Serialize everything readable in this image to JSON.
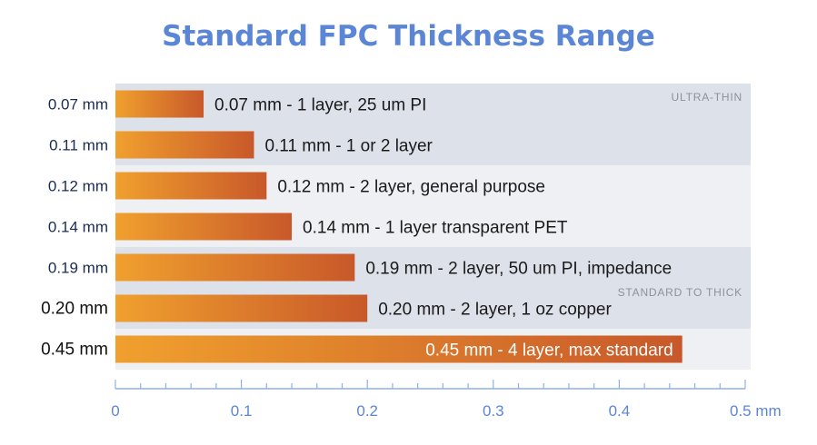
{
  "chart_data": {
    "type": "bar",
    "orientation": "horizontal",
    "title": "Standard FPC Thickness Range",
    "categories": [
      "0.07 mm",
      "0.11 mm",
      "0.12 mm",
      "0.14 mm",
      "0.19 mm",
      "0.20 mm",
      "0.45 mm"
    ],
    "values": [
      0.07,
      0.11,
      0.12,
      0.14,
      0.19,
      0.2,
      0.45
    ],
    "data_labels": [
      "0.07 mm - 1 layer, 25 um PI",
      "0.11 mm - 1 or 2 layer",
      "0.12 mm - 2 layer, general purpose",
      "0.14 mm - 1 layer transparent PET",
      "0.19 mm - 2 layer, 50 um PI, impedance",
      "0.20 mm - 2 layer, 1 oz copper",
      "0.45 mm - 4 layer, max standard"
    ],
    "x_ticks": [
      "0",
      "0.1",
      "0.2",
      "0.3",
      "0.4",
      "0.5 mm"
    ],
    "xlim": [
      0,
      0.5
    ],
    "annotations": [
      "ULTRA-THIN",
      "STANDARD TO THICK"
    ],
    "colors": {
      "bar_start": "#f0a02e",
      "bar_end": "#c8582a",
      "band_dark": "#dde1ea",
      "band_light": "#eef0f4",
      "title": "#5b86d6",
      "axis": "#8fb0e4",
      "category_text": "#1a2c50",
      "annotation_text": "#8c919a"
    }
  }
}
